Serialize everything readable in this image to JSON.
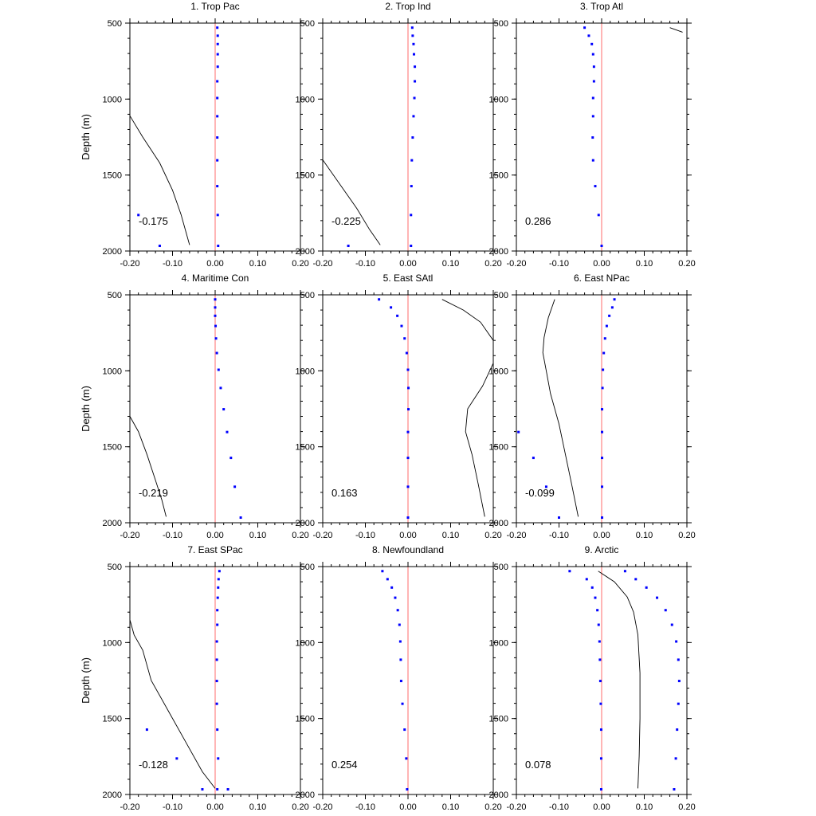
{
  "figure": {
    "ylabel": "Depth (m)"
  },
  "colors": {
    "zero_line": "#ff6b6b",
    "points": "#0000ff",
    "curve": "#000000",
    "axes": "#000000"
  },
  "chart_data": [
    {
      "type": "scatter",
      "title": "1. Trop Pac",
      "annotation": "-0.175",
      "xlim": [
        -0.2,
        0.2
      ],
      "ylim": [
        2000,
        500
      ],
      "xticks": [
        "-0.20",
        "-0.10",
        "0.00",
        "0.10",
        "0.20"
      ],
      "yticks": [
        "500",
        "1000",
        "1500",
        "2000"
      ],
      "points": [
        [
          0.005,
          530
        ],
        [
          0.006,
          583
        ],
        [
          0.006,
          638
        ],
        [
          0.006,
          705
        ],
        [
          0.006,
          787
        ],
        [
          0.005,
          883
        ],
        [
          0.005,
          993
        ],
        [
          0.005,
          1113
        ],
        [
          0.005,
          1253
        ],
        [
          0.005,
          1403
        ],
        [
          0.005,
          1573
        ],
        [
          0.006,
          1763
        ],
        [
          0.007,
          1966
        ],
        [
          -0.18,
          1763
        ],
        [
          -0.13,
          1966
        ]
      ],
      "curve": [
        [
          -0.2,
          1110
        ],
        [
          -0.17,
          1250
        ],
        [
          -0.13,
          1420
        ],
        [
          -0.1,
          1600
        ],
        [
          -0.08,
          1760
        ],
        [
          -0.06,
          1960
        ]
      ]
    },
    {
      "type": "scatter",
      "title": "2. Trop Ind",
      "annotation": "-0.225",
      "xlim": [
        -0.2,
        0.2
      ],
      "ylim": [
        2000,
        500
      ],
      "xticks": [
        "-0.20",
        "-0.10",
        "0.00",
        "0.10",
        "0.20"
      ],
      "yticks": [
        "500",
        "1000",
        "1500",
        "2000"
      ],
      "points": [
        [
          0.01,
          530
        ],
        [
          0.011,
          583
        ],
        [
          0.013,
          638
        ],
        [
          0.014,
          705
        ],
        [
          0.016,
          787
        ],
        [
          0.016,
          883
        ],
        [
          0.015,
          993
        ],
        [
          0.013,
          1113
        ],
        [
          0.011,
          1253
        ],
        [
          0.009,
          1403
        ],
        [
          0.008,
          1573
        ],
        [
          0.007,
          1763
        ],
        [
          0.007,
          1966
        ],
        [
          -0.14,
          1966
        ]
      ],
      "curve": [
        [
          -0.2,
          1400
        ],
        [
          -0.16,
          1560
        ],
        [
          -0.12,
          1720
        ],
        [
          -0.09,
          1860
        ],
        [
          -0.065,
          1960
        ]
      ]
    },
    {
      "type": "scatter",
      "title": "3. Trop Atl",
      "annotation": "0.286",
      "xlim": [
        -0.2,
        0.2
      ],
      "ylim": [
        2000,
        500
      ],
      "xticks": [
        "-0.20",
        "-0.10",
        "0.00",
        "0.10",
        "0.20"
      ],
      "yticks": [
        "500",
        "1000",
        "1500",
        "2000"
      ],
      "points": [
        [
          -0.04,
          530
        ],
        [
          -0.03,
          583
        ],
        [
          -0.023,
          638
        ],
        [
          -0.02,
          705
        ],
        [
          -0.018,
          787
        ],
        [
          -0.018,
          883
        ],
        [
          -0.02,
          993
        ],
        [
          -0.02,
          1113
        ],
        [
          -0.021,
          1253
        ],
        [
          -0.02,
          1403
        ],
        [
          -0.015,
          1573
        ],
        [
          -0.007,
          1763
        ],
        [
          0.0,
          1966
        ]
      ],
      "curve": [
        [
          0.16,
          530
        ],
        [
          0.19,
          560
        ]
      ]
    },
    {
      "type": "scatter",
      "title": "4. Maritime Con",
      "annotation": "-0.219",
      "xlim": [
        -0.2,
        0.2
      ],
      "ylim": [
        2000,
        500
      ],
      "xticks": [
        "-0.20",
        "-0.10",
        "0.00",
        "0.10",
        "0.20"
      ],
      "yticks": [
        "500",
        "1000",
        "1500",
        "2000"
      ],
      "points": [
        [
          0.0,
          530
        ],
        [
          0.0,
          583
        ],
        [
          0.0,
          638
        ],
        [
          0.001,
          705
        ],
        [
          0.002,
          787
        ],
        [
          0.004,
          883
        ],
        [
          0.008,
          993
        ],
        [
          0.013,
          1113
        ],
        [
          0.02,
          1253
        ],
        [
          0.028,
          1403
        ],
        [
          0.037,
          1573
        ],
        [
          0.046,
          1763
        ],
        [
          0.06,
          1966
        ]
      ],
      "curve": [
        [
          -0.2,
          1300
        ],
        [
          -0.18,
          1400
        ],
        [
          -0.16,
          1550
        ],
        [
          -0.14,
          1720
        ],
        [
          -0.125,
          1850
        ],
        [
          -0.115,
          1960
        ]
      ]
    },
    {
      "type": "scatter",
      "title": "5. East SAtl",
      "annotation": "0.163",
      "xlim": [
        -0.2,
        0.2
      ],
      "ylim": [
        2000,
        500
      ],
      "xticks": [
        "-0.20",
        "-0.10",
        "0.00",
        "0.10",
        "0.20"
      ],
      "yticks": [
        "500",
        "1000",
        "1500",
        "2000"
      ],
      "points": [
        [
          -0.068,
          530
        ],
        [
          -0.04,
          583
        ],
        [
          -0.025,
          638
        ],
        [
          -0.015,
          705
        ],
        [
          -0.008,
          787
        ],
        [
          -0.003,
          883
        ],
        [
          0.0,
          993
        ],
        [
          0.001,
          1113
        ],
        [
          0.001,
          1253
        ],
        [
          0.0,
          1403
        ],
        [
          0.0,
          1573
        ],
        [
          0.0,
          1763
        ],
        [
          0.0,
          1966
        ]
      ],
      "curve": [
        [
          0.08,
          530
        ],
        [
          0.13,
          600
        ],
        [
          0.17,
          680
        ],
        [
          0.2,
          800
        ],
        [
          0.2,
          950
        ],
        [
          0.175,
          1100
        ],
        [
          0.14,
          1250
        ],
        [
          0.135,
          1400
        ],
        [
          0.15,
          1550
        ],
        [
          0.165,
          1750
        ],
        [
          0.18,
          1960
        ]
      ]
    },
    {
      "type": "scatter",
      "title": "6. East NPac",
      "annotation": "-0.099",
      "xlim": [
        -0.2,
        0.2
      ],
      "ylim": [
        2000,
        500
      ],
      "xticks": [
        "-0.20",
        "-0.10",
        "0.00",
        "0.10",
        "0.20"
      ],
      "yticks": [
        "500",
        "1000",
        "1500",
        "2000"
      ],
      "points": [
        [
          0.03,
          530
        ],
        [
          0.025,
          583
        ],
        [
          0.018,
          638
        ],
        [
          0.012,
          705
        ],
        [
          0.008,
          787
        ],
        [
          0.005,
          883
        ],
        [
          0.003,
          993
        ],
        [
          0.002,
          1113
        ],
        [
          0.001,
          1253
        ],
        [
          0.001,
          1403
        ],
        [
          0.001,
          1573
        ],
        [
          0.001,
          1763
        ],
        [
          0.001,
          1966
        ],
        [
          -0.195,
          1403
        ],
        [
          -0.16,
          1573
        ],
        [
          -0.13,
          1763
        ],
        [
          -0.1,
          1966
        ]
      ],
      "curve": [
        [
          -0.11,
          530
        ],
        [
          -0.125,
          650
        ],
        [
          -0.135,
          780
        ],
        [
          -0.138,
          880
        ],
        [
          -0.13,
          1000
        ],
        [
          -0.12,
          1150
        ],
        [
          -0.1,
          1350
        ],
        [
          -0.085,
          1550
        ],
        [
          -0.07,
          1750
        ],
        [
          -0.055,
          1960
        ]
      ]
    },
    {
      "type": "scatter",
      "title": "7. East SPac",
      "annotation": "-0.128",
      "xlim": [
        -0.2,
        0.2
      ],
      "ylim": [
        2000,
        500
      ],
      "xticks": [
        "-0.20",
        "-0.10",
        "0.00",
        "0.10",
        "0.20"
      ],
      "yticks": [
        "500",
        "1000",
        "1500",
        "2000"
      ],
      "points": [
        [
          0.01,
          530
        ],
        [
          0.008,
          583
        ],
        [
          0.007,
          638
        ],
        [
          0.006,
          705
        ],
        [
          0.005,
          787
        ],
        [
          0.005,
          883
        ],
        [
          0.004,
          993
        ],
        [
          0.004,
          1113
        ],
        [
          0.004,
          1253
        ],
        [
          0.004,
          1403
        ],
        [
          0.005,
          1573
        ],
        [
          0.007,
          1763
        ],
        [
          0.005,
          1966
        ],
        [
          -0.16,
          1573
        ],
        [
          -0.09,
          1763
        ],
        [
          -0.03,
          1966
        ],
        [
          0.03,
          1966
        ]
      ],
      "curve": [
        [
          -0.2,
          850
        ],
        [
          -0.19,
          950
        ],
        [
          -0.17,
          1050
        ],
        [
          -0.15,
          1250
        ],
        [
          -0.11,
          1450
        ],
        [
          -0.07,
          1650
        ],
        [
          -0.03,
          1850
        ],
        [
          0.0,
          1960
        ]
      ]
    },
    {
      "type": "scatter",
      "title": "8. Newfoundland",
      "annotation": "0.254",
      "xlim": [
        -0.2,
        0.2
      ],
      "ylim": [
        2000,
        500
      ],
      "xticks": [
        "-0.20",
        "-0.10",
        "0.00",
        "0.10",
        "0.20"
      ],
      "yticks": [
        "500",
        "1000",
        "1500",
        "2000"
      ],
      "points": [
        [
          -0.06,
          530
        ],
        [
          -0.048,
          583
        ],
        [
          -0.038,
          638
        ],
        [
          -0.03,
          705
        ],
        [
          -0.024,
          787
        ],
        [
          -0.02,
          883
        ],
        [
          -0.018,
          993
        ],
        [
          -0.017,
          1113
        ],
        [
          -0.016,
          1253
        ],
        [
          -0.013,
          1403
        ],
        [
          -0.008,
          1573
        ],
        [
          -0.004,
          1763
        ],
        [
          -0.002,
          1966
        ]
      ],
      "curve": []
    },
    {
      "type": "scatter",
      "title": "9. Arctic",
      "annotation": "0.078",
      "xlim": [
        -0.2,
        0.2
      ],
      "ylim": [
        2000,
        500
      ],
      "xticks": [
        "-0.20",
        "-0.10",
        "0.00",
        "0.10",
        "0.20"
      ],
      "yticks": [
        "500",
        "1000",
        "1500",
        "2000"
      ],
      "points": [
        [
          -0.075,
          530
        ],
        [
          -0.035,
          583
        ],
        [
          -0.022,
          638
        ],
        [
          -0.015,
          705
        ],
        [
          -0.01,
          787
        ],
        [
          -0.007,
          883
        ],
        [
          -0.005,
          993
        ],
        [
          -0.004,
          1113
        ],
        [
          -0.003,
          1253
        ],
        [
          -0.002,
          1403
        ],
        [
          -0.001,
          1573
        ],
        [
          -0.001,
          1763
        ],
        [
          -0.001,
          1966
        ],
        [
          0.055,
          530
        ],
        [
          0.08,
          583
        ],
        [
          0.105,
          638
        ],
        [
          0.13,
          705
        ],
        [
          0.15,
          787
        ],
        [
          0.165,
          883
        ],
        [
          0.175,
          993
        ],
        [
          0.18,
          1113
        ],
        [
          0.182,
          1253
        ],
        [
          0.18,
          1403
        ],
        [
          0.177,
          1573
        ],
        [
          0.174,
          1763
        ],
        [
          0.17,
          1966
        ]
      ],
      "curve": [
        [
          -0.008,
          530
        ],
        [
          0.03,
          600
        ],
        [
          0.06,
          700
        ],
        [
          0.075,
          800
        ],
        [
          0.085,
          950
        ],
        [
          0.09,
          1200
        ],
        [
          0.09,
          1500
        ],
        [
          0.088,
          1750
        ],
        [
          0.085,
          1960
        ]
      ]
    }
  ]
}
